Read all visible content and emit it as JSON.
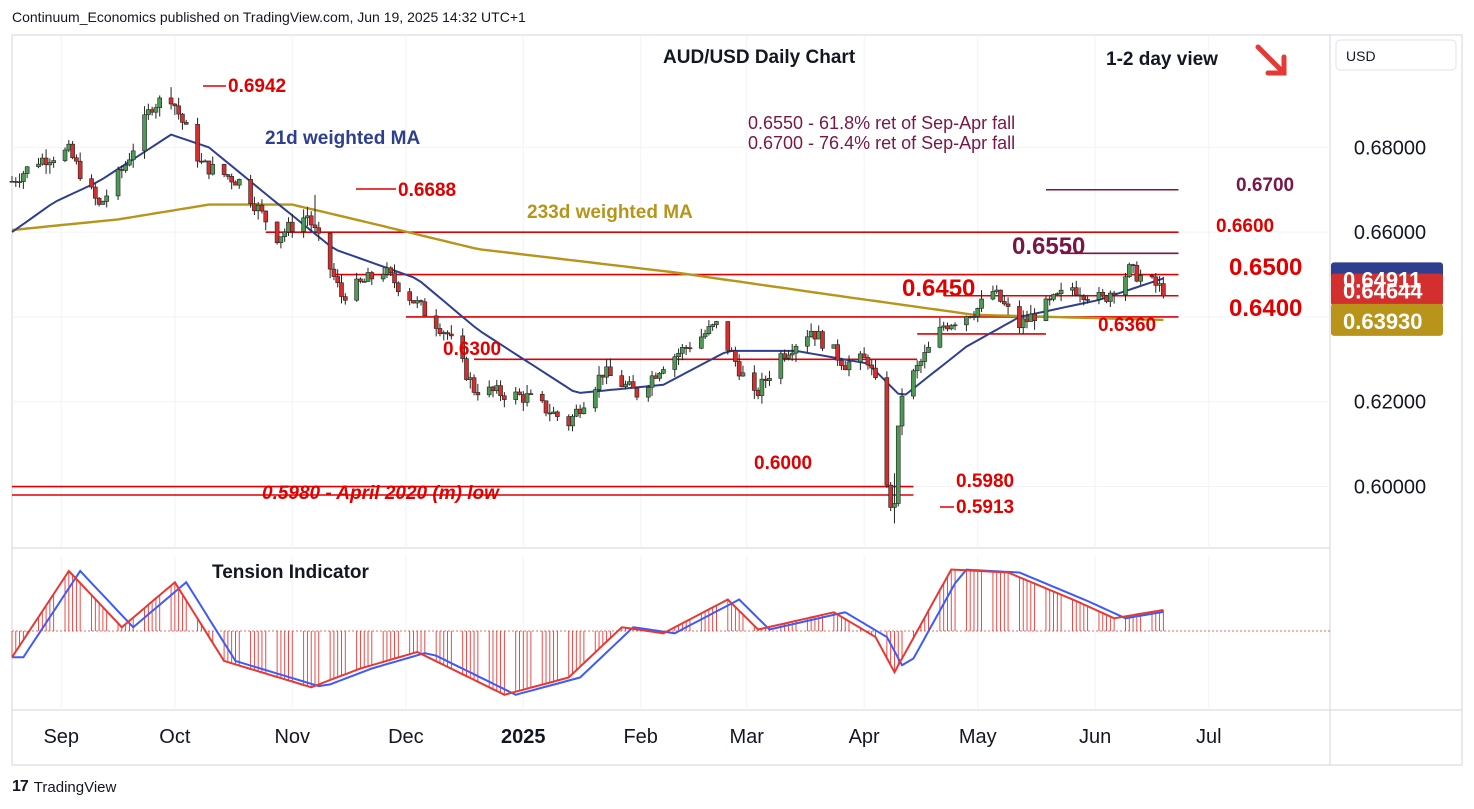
{
  "header": {
    "publisher": "Continuum_Economics published on TradingView.com, Jun 19, 2025 14:32 UTC+1"
  },
  "footer": {
    "logo_text": "TradingView",
    "logo_glyph": "17"
  },
  "currency_button": "USD",
  "colors": {
    "bull": "#4c9a54",
    "bear": "#d32f2f",
    "ma21": "#2e3f8f",
    "ma233": "#b8951a",
    "level_red": "#e00000",
    "level_purple": "#7a1646",
    "tension_red": "#e53935",
    "tension_blue": "#3d5afe",
    "arrow_red": "#e53935"
  },
  "chart_data": [
    {
      "type": "candlestick",
      "title": "AUD/USD Daily Chart",
      "view_label": "1-2 day view",
      "view_direction": "down-right-arrow",
      "x_ticks": [
        "Sep",
        "Oct",
        "Nov",
        "Dec",
        "2025",
        "Feb",
        "Mar",
        "Apr",
        "May",
        "Jun",
        "Jul"
      ],
      "y_ticks": [
        "0.60000",
        "0.62000",
        "0.64000",
        "0.66000",
        "0.68000"
      ],
      "ylim": [
        0.5855,
        0.7065
      ],
      "price_badges": [
        {
          "label": "0.64911",
          "value": 0.64911,
          "color": "#2e3f8f"
        },
        {
          "label": "0.64644",
          "value": 0.64644,
          "color": "#d32f2f"
        },
        {
          "label": "0.63930",
          "value": 0.6393,
          "color": "#b8951a"
        }
      ],
      "ohlc_anchors": [
        {
          "date": "2024-08-19",
          "close": 0.672
        },
        {
          "date": "2024-08-26",
          "close": 0.677
        },
        {
          "date": "2024-09-03",
          "close": 0.679
        },
        {
          "date": "2024-09-11",
          "close": 0.666
        },
        {
          "date": "2024-09-18",
          "close": 0.676
        },
        {
          "date": "2024-09-25",
          "close": 0.69
        },
        {
          "date": "2024-09-30",
          "close": 0.692
        },
        {
          "date": "2024-10-08",
          "close": 0.676
        },
        {
          "date": "2024-10-18",
          "close": 0.672
        },
        {
          "date": "2024-10-28",
          "close": 0.659
        },
        {
          "date": "2024-11-05",
          "close": 0.664
        },
        {
          "date": "2024-11-08",
          "close": 0.658
        },
        {
          "date": "2024-11-14",
          "close": 0.645
        },
        {
          "date": "2024-11-25",
          "close": 0.651
        },
        {
          "date": "2024-12-04",
          "close": 0.643
        },
        {
          "date": "2024-12-12",
          "close": 0.636
        },
        {
          "date": "2024-12-19",
          "close": 0.623
        },
        {
          "date": "2025-01-02",
          "close": 0.621
        },
        {
          "date": "2025-01-13",
          "close": 0.615
        },
        {
          "date": "2025-01-22",
          "close": 0.627
        },
        {
          "date": "2025-01-31",
          "close": 0.622
        },
        {
          "date": "2025-02-07",
          "close": 0.629
        },
        {
          "date": "2025-02-21",
          "close": 0.638
        },
        {
          "date": "2025-03-03",
          "close": 0.621
        },
        {
          "date": "2025-03-10",
          "close": 0.631
        },
        {
          "date": "2025-03-18",
          "close": 0.637
        },
        {
          "date": "2025-03-27",
          "close": 0.629
        },
        {
          "date": "2025-04-02",
          "close": 0.63
        },
        {
          "date": "2025-04-04",
          "close": 0.624
        },
        {
          "date": "2025-04-08",
          "close": 0.594
        },
        {
          "date": "2025-04-11",
          "close": 0.622
        },
        {
          "date": "2025-04-22",
          "close": 0.638
        },
        {
          "date": "2025-05-01",
          "close": 0.642
        },
        {
          "date": "2025-05-05",
          "close": 0.646
        },
        {
          "date": "2025-05-12",
          "close": 0.638
        },
        {
          "date": "2025-05-26",
          "close": 0.647
        },
        {
          "date": "2025-06-03",
          "close": 0.644
        },
        {
          "date": "2025-06-10",
          "close": 0.651
        },
        {
          "date": "2025-06-19",
          "close": 0.6464
        }
      ],
      "ma_21_anchors": [
        {
          "date": "2024-08-19",
          "value": 0.66
        },
        {
          "date": "2024-08-30",
          "value": 0.667
        },
        {
          "date": "2024-09-11",
          "value": 0.672
        },
        {
          "date": "2024-09-30",
          "value": 0.683
        },
        {
          "date": "2024-10-10",
          "value": 0.68
        },
        {
          "date": "2024-10-25",
          "value": 0.669
        },
        {
          "date": "2024-11-12",
          "value": 0.656
        },
        {
          "date": "2024-12-04",
          "value": 0.649
        },
        {
          "date": "2024-12-20",
          "value": 0.637
        },
        {
          "date": "2025-01-15",
          "value": 0.622
        },
        {
          "date": "2025-02-07",
          "value": 0.624
        },
        {
          "date": "2025-02-24",
          "value": 0.632
        },
        {
          "date": "2025-03-14",
          "value": 0.632
        },
        {
          "date": "2025-04-02",
          "value": 0.629
        },
        {
          "date": "2025-04-11",
          "value": 0.621
        },
        {
          "date": "2025-04-28",
          "value": 0.633
        },
        {
          "date": "2025-05-12",
          "value": 0.64
        },
        {
          "date": "2025-06-02",
          "value": 0.644
        },
        {
          "date": "2025-06-19",
          "value": 0.6491
        }
      ],
      "ma_233_anchors": [
        {
          "date": "2024-08-19",
          "value": 0.6605
        },
        {
          "date": "2024-09-16",
          "value": 0.663
        },
        {
          "date": "2024-10-10",
          "value": 0.6665
        },
        {
          "date": "2024-11-01",
          "value": 0.6665
        },
        {
          "date": "2024-11-20",
          "value": 0.6625
        },
        {
          "date": "2024-12-20",
          "value": 0.656
        },
        {
          "date": "2025-02-10",
          "value": 0.6505
        },
        {
          "date": "2025-03-25",
          "value": 0.645
        },
        {
          "date": "2025-04-30",
          "value": 0.6405
        },
        {
          "date": "2025-06-19",
          "value": 0.6393
        }
      ],
      "levels": [
        {
          "label": "0.6700",
          "value": 0.67,
          "color": "purple",
          "from": "2025-05-19",
          "to": "2025-06-23"
        },
        {
          "label": "0.6600",
          "value": 0.66,
          "color": "red",
          "from": "2024-10-25",
          "to": "2025-06-23"
        },
        {
          "label": "0.6550",
          "value": 0.655,
          "color": "purple",
          "from": "2025-05-23",
          "to": "2025-06-23"
        },
        {
          "label": "0.6500",
          "value": 0.65,
          "color": "red",
          "from": "2024-11-12",
          "to": "2025-06-23"
        },
        {
          "label": "0.6450",
          "value": 0.645,
          "color": "red",
          "from": "2025-04-22",
          "to": "2025-06-23"
        },
        {
          "label": "0.6400",
          "value": 0.64,
          "color": "red",
          "from": "2024-12-01",
          "to": "2025-06-23"
        },
        {
          "label": "0.6360",
          "value": 0.636,
          "color": "red",
          "from": "2025-04-15",
          "to": "2025-05-19"
        },
        {
          "label": "0.6300",
          "value": 0.63,
          "color": "red",
          "from": "2024-12-19",
          "to": "2025-04-15"
        },
        {
          "label": "0.6000",
          "value": 0.6,
          "color": "red",
          "from": "2024-08-19",
          "to": "2025-04-14"
        },
        {
          "label": "0.5980",
          "value": 0.598,
          "color": "red",
          "from": "2024-08-19",
          "to": "2025-04-14"
        }
      ],
      "annotations": [
        {
          "text": "0.6942",
          "date": "2024-09-30",
          "value": 0.6942
        },
        {
          "text": "0.6688",
          "date": "2024-11-07",
          "value": 0.6688
        },
        {
          "text": "0.5913",
          "date": "2025-04-09",
          "value": 0.5913
        },
        {
          "text": "21d weighted MA"
        },
        {
          "text": "233d weighted MA"
        },
        {
          "text": "0.6550 - 61.8% ret of Sep-Apr fall"
        },
        {
          "text": "0.6700 - 76.4% ret of Sep-Apr fall"
        },
        {
          "text": "0.5980 - April 2020 (m) low"
        }
      ]
    },
    {
      "type": "area",
      "title": "Tension Indicator",
      "series_anchors": [
        {
          "date": "2024-08-19",
          "value": -0.35
        },
        {
          "date": "2024-09-03",
          "value": 0.8
        },
        {
          "date": "2024-09-17",
          "value": 0.05
        },
        {
          "date": "2024-10-01",
          "value": 0.65
        },
        {
          "date": "2024-10-14",
          "value": -0.4
        },
        {
          "date": "2024-11-06",
          "value": -0.75
        },
        {
          "date": "2024-11-19",
          "value": -0.5
        },
        {
          "date": "2024-12-04",
          "value": -0.28
        },
        {
          "date": "2024-12-27",
          "value": -0.85
        },
        {
          "date": "2025-01-13",
          "value": -0.62
        },
        {
          "date": "2025-01-27",
          "value": 0.05
        },
        {
          "date": "2025-02-07",
          "value": -0.03
        },
        {
          "date": "2025-02-24",
          "value": 0.42
        },
        {
          "date": "2025-03-04",
          "value": 0.02
        },
        {
          "date": "2025-03-24",
          "value": 0.25
        },
        {
          "date": "2025-04-04",
          "value": -0.08
        },
        {
          "date": "2025-04-09",
          "value": -0.55
        },
        {
          "date": "2025-04-24",
          "value": 0.82
        },
        {
          "date": "2025-05-09",
          "value": 0.78
        },
        {
          "date": "2025-05-27",
          "value": 0.4
        },
        {
          "date": "2025-06-06",
          "value": 0.17
        },
        {
          "date": "2025-06-19",
          "value": 0.28
        }
      ]
    }
  ]
}
